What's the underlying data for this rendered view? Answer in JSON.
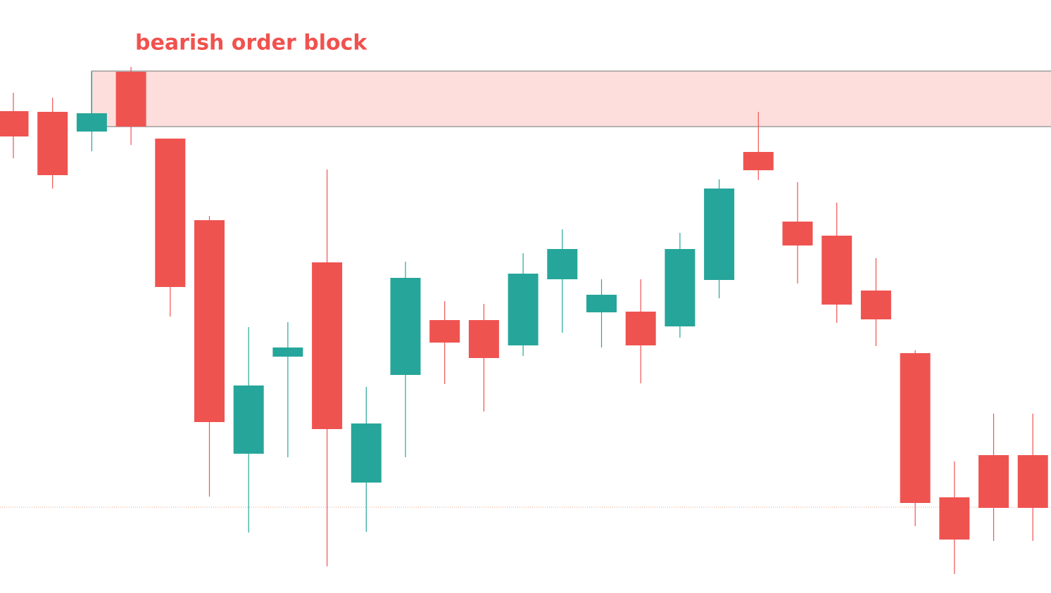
{
  "chart_data": {
    "type": "candlestick",
    "up_color": "#26a69a",
    "down_color": "#ef5350",
    "ylim": [
      0,
      843
    ],
    "open": [
      685,
      684,
      656,
      741,
      646,
      530,
      198,
      336,
      470,
      157,
      310,
      388,
      388,
      352,
      446,
      399,
      400,
      379,
      445,
      627,
      528,
      508,
      430,
      341,
      136,
      196,
      196
    ],
    "high": [
      711,
      704,
      741,
      748,
      646,
      536,
      378,
      385,
      602,
      293,
      471,
      415,
      411,
      483,
      517,
      446,
      446,
      512,
      588,
      684,
      584,
      555,
      476,
      345,
      187,
      255,
      255
    ],
    "low": [
      618,
      575,
      628,
      637,
      393,
      137,
      86,
      193,
      38,
      87,
      193,
      297,
      258,
      337,
      370,
      349,
      298,
      363,
      419,
      587,
      440,
      384,
      351,
      95,
      27,
      74,
      74
    ],
    "close": [
      649,
      594,
      682,
      663,
      435,
      243,
      295,
      349,
      233,
      241,
      448,
      356,
      334,
      454,
      489,
      424,
      352,
      489,
      575,
      601,
      494,
      410,
      389,
      128,
      76,
      121,
      121
    ],
    "zone": {
      "label": "bearish order block",
      "top": 742,
      "bottom": 663,
      "color": "#fddedc",
      "label_color": "#f0524f"
    },
    "hline": {
      "value": 122,
      "color": "#f0a080"
    }
  }
}
